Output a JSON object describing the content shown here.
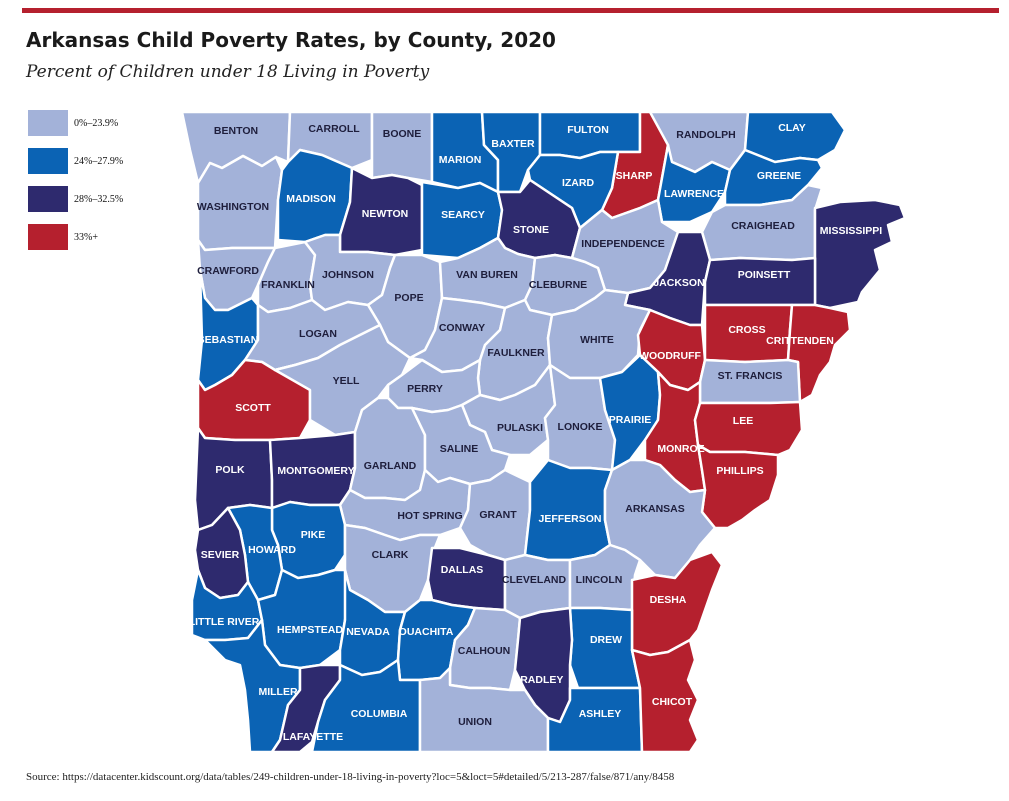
{
  "header": {
    "title": "Arkansas Child Poverty Rates, by County, 2020",
    "subtitle": "Percent of Children under 18 Living in Poverty"
  },
  "colors": {
    "accent_bar": "#b5202e",
    "c1": "#a3b2d9",
    "c2": "#0b63b4",
    "c3": "#2e2a6e",
    "c4": "#b5202e"
  },
  "legend": [
    {
      "label": "0%–23.9%",
      "cls": "c1"
    },
    {
      "label": "24%–27.9%",
      "cls": "c2"
    },
    {
      "label": "28%–32.5%",
      "cls": "c3"
    },
    {
      "label": "33%+",
      "cls": "c4"
    }
  ],
  "counties": [
    {
      "name": "BENTON",
      "cls": "c1"
    },
    {
      "name": "CARROLL",
      "cls": "c1"
    },
    {
      "name": "BOONE",
      "cls": "c1"
    },
    {
      "name": "MARION",
      "cls": "c2"
    },
    {
      "name": "BAXTER",
      "cls": "c2"
    },
    {
      "name": "FULTON",
      "cls": "c2"
    },
    {
      "name": "RANDOLPH",
      "cls": "c1"
    },
    {
      "name": "CLAY",
      "cls": "c2"
    },
    {
      "name": "SHARP",
      "cls": "c4"
    },
    {
      "name": "IZARD",
      "cls": "c2"
    },
    {
      "name": "LAWRENCE",
      "cls": "c2"
    },
    {
      "name": "GREENE",
      "cls": "c2"
    },
    {
      "name": "WASHINGTON",
      "cls": "c1"
    },
    {
      "name": "MADISON",
      "cls": "c2"
    },
    {
      "name": "NEWTON",
      "cls": "c3"
    },
    {
      "name": "SEARCY",
      "cls": "c2"
    },
    {
      "name": "STONE",
      "cls": "c3"
    },
    {
      "name": "INDEPENDENCE",
      "cls": "c1"
    },
    {
      "name": "CRAIGHEAD",
      "cls": "c1"
    },
    {
      "name": "MISSISSIPPI",
      "cls": "c3"
    },
    {
      "name": "CRAWFORD",
      "cls": "c1"
    },
    {
      "name": "FRANKLIN",
      "cls": "c1"
    },
    {
      "name": "JOHNSON",
      "cls": "c1"
    },
    {
      "name": "POPE",
      "cls": "c1"
    },
    {
      "name": "VAN BUREN",
      "cls": "c1"
    },
    {
      "name": "CLEBURNE",
      "cls": "c1"
    },
    {
      "name": "JACKSON",
      "cls": "c3"
    },
    {
      "name": "POINSETT",
      "cls": "c3"
    },
    {
      "name": "SEBASTIAN",
      "cls": "c2"
    },
    {
      "name": "LOGAN",
      "cls": "c1"
    },
    {
      "name": "CONWAY",
      "cls": "c1"
    },
    {
      "name": "FAULKNER",
      "cls": "c1"
    },
    {
      "name": "WHITE",
      "cls": "c1"
    },
    {
      "name": "WOODRUFF",
      "cls": "c4"
    },
    {
      "name": "CROSS",
      "cls": "c4"
    },
    {
      "name": "CRITTENDEN",
      "cls": "c4"
    },
    {
      "name": "SCOTT",
      "cls": "c4"
    },
    {
      "name": "YELL",
      "cls": "c1"
    },
    {
      "name": "PERRY",
      "cls": "c1"
    },
    {
      "name": "ST. FRANCIS",
      "cls": "c1"
    },
    {
      "name": "PULASKI",
      "cls": "c1"
    },
    {
      "name": "LONOKE",
      "cls": "c1"
    },
    {
      "name": "PRAIRIE",
      "cls": "c2"
    },
    {
      "name": "MONROE",
      "cls": "c4"
    },
    {
      "name": "LEE",
      "cls": "c4"
    },
    {
      "name": "POLK",
      "cls": "c3"
    },
    {
      "name": "MONTGOMERY",
      "cls": "c3"
    },
    {
      "name": "GARLAND",
      "cls": "c1"
    },
    {
      "name": "SALINE",
      "cls": "c1"
    },
    {
      "name": "PHILLIPS",
      "cls": "c4"
    },
    {
      "name": "HOT SPRING",
      "cls": "c1"
    },
    {
      "name": "GRANT",
      "cls": "c1"
    },
    {
      "name": "JEFFERSON",
      "cls": "c2"
    },
    {
      "name": "ARKANSAS",
      "cls": "c1"
    },
    {
      "name": "PIKE",
      "cls": "c2"
    },
    {
      "name": "HOWARD",
      "cls": "c2"
    },
    {
      "name": "SEVIER",
      "cls": "c3"
    },
    {
      "name": "CLARK",
      "cls": "c1"
    },
    {
      "name": "DALLAS",
      "cls": "c3"
    },
    {
      "name": "CLEVELAND",
      "cls": "c1"
    },
    {
      "name": "LINCOLN",
      "cls": "c1"
    },
    {
      "name": "DESHA",
      "cls": "c4"
    },
    {
      "name": "LITTLE RIVER",
      "cls": "c2"
    },
    {
      "name": "HEMPSTEAD",
      "cls": "c2"
    },
    {
      "name": "NEVADA",
      "cls": "c2"
    },
    {
      "name": "OUACHITA",
      "cls": "c2"
    },
    {
      "name": "CALHOUN",
      "cls": "c1"
    },
    {
      "name": "DREW",
      "cls": "c2"
    },
    {
      "name": "BRADLEY",
      "cls": "c3"
    },
    {
      "name": "MILLER",
      "cls": "c2"
    },
    {
      "name": "LAFAYETTE",
      "cls": "c3"
    },
    {
      "name": "COLUMBIA",
      "cls": "c2"
    },
    {
      "name": "UNION",
      "cls": "c1"
    },
    {
      "name": "ASHLEY",
      "cls": "c2"
    },
    {
      "name": "CHICOT",
      "cls": "c4"
    }
  ],
  "source": "Source: https://datacenter.kidscount.org/data/tables/249-children-under-18-living-in-poverty?loc=5&loct=5#detailed/5/213-287/false/871/any/8458"
}
